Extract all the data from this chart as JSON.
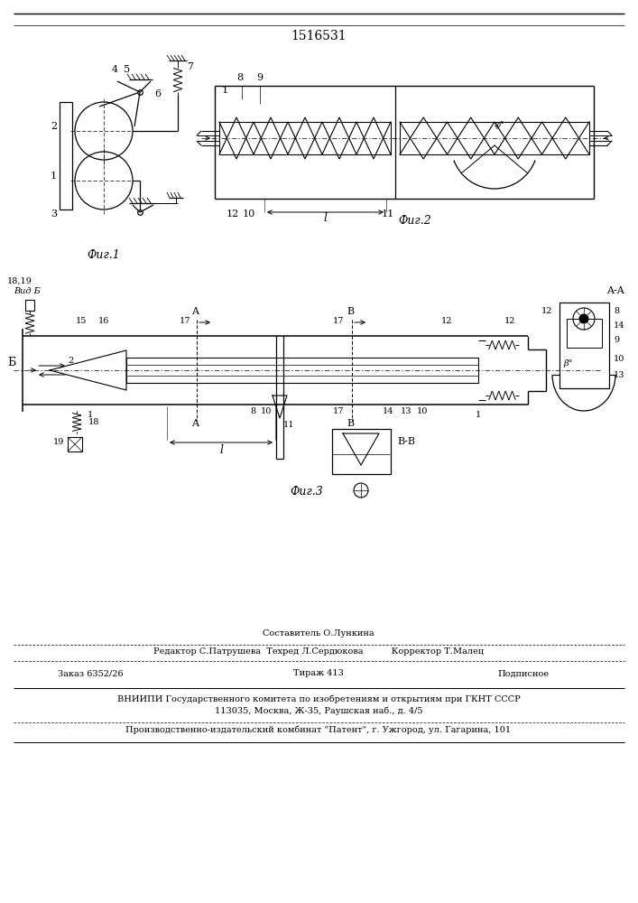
{
  "patent_number": "1516531",
  "bg_color": "#ffffff",
  "fig1_caption": "Фиг.1",
  "fig2_caption": "Фиг.2",
  "fig3_caption": "Фиг.3",
  "footer_sestavitel": "Составитель О.Лункина",
  "footer_editor": "Редактор С.Патрушева  Техред Л.Сердюкова          Корректор Т.Малец",
  "footer_zakaz": "Заказ 6352/26",
  "footer_tirazh": "Тираж 413",
  "footer_podpisnoe": "Подписное",
  "footer_vniip1": "ВНИИПИ Государственного комитета по изобретениям и открытиям при ГКНТ СССР",
  "footer_vniip2": "113035, Москва, Ж-35, Раушская наб., д. 4/5",
  "footer_patent": "Производственно-издательский комбинат \"Патент\", г. Ужгород, ул. Гагарина, 101"
}
